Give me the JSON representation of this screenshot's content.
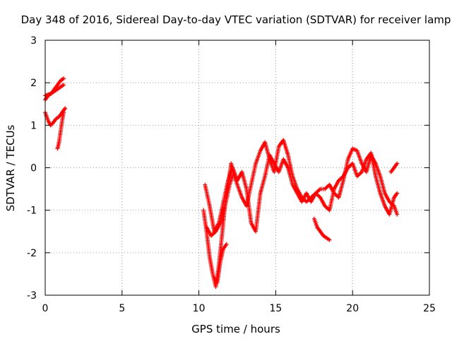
{
  "chart_data": {
    "type": "scatter",
    "title": "Day 348 of 2016, Sidereal Day-to-day VTEC variation (SDTVAR) for receiver lamp",
    "xlabel": "GPS time / hours",
    "ylabel": "SDTVAR / TECUs",
    "xlim": [
      0,
      25
    ],
    "ylim": [
      -3,
      3
    ],
    "xticks": [
      "0",
      "5",
      "10",
      "15",
      "20",
      "25"
    ],
    "yticks": [
      "3",
      "2",
      "1",
      "0",
      "-1",
      "-2",
      "-3"
    ],
    "grid": true,
    "legend": "none",
    "marker": "plus",
    "color": "#ff0000",
    "series": [
      {
        "x": [
          0.0,
          0.2,
          0.4,
          0.6,
          0.8,
          1.0,
          1.2
        ],
        "y": [
          1.6,
          1.7,
          1.75,
          1.85,
          1.95,
          2.05,
          2.1
        ]
      },
      {
        "x": [
          0.0,
          0.2,
          0.4,
          0.6,
          0.8,
          1.0,
          1.2
        ],
        "y": [
          1.7,
          1.72,
          1.75,
          1.8,
          1.85,
          1.9,
          1.95
        ]
      },
      {
        "x": [
          0.0,
          0.2,
          0.35,
          0.5,
          0.7,
          0.9,
          1.1,
          1.3
        ],
        "y": [
          1.3,
          1.1,
          1.0,
          1.05,
          1.15,
          1.2,
          1.3,
          1.4
        ]
      },
      {
        "x": [
          0.8,
          0.9,
          1.0,
          1.1,
          1.2
        ],
        "y": [
          0.45,
          0.6,
          0.85,
          1.1,
          1.3
        ]
      },
      {
        "x": [
          10.3,
          10.5,
          10.7,
          10.9,
          11.1,
          11.3,
          11.5,
          11.7,
          11.9,
          12.1,
          12.3,
          12.5,
          12.8,
          13.1,
          13.4,
          13.7,
          14.0,
          14.3,
          14.6,
          14.9,
          15.2,
          15.5,
          15.8,
          16.1,
          16.4,
          16.7,
          17.0,
          17.3,
          17.6,
          17.9,
          18.2,
          18.5,
          18.8,
          19.1,
          19.4,
          19.7,
          20.0,
          20.3,
          20.6,
          20.9,
          21.2,
          21.5,
          21.8,
          22.1,
          22.4,
          22.7,
          22.9
        ],
        "y": [
          -1.0,
          -1.5,
          -2.1,
          -2.5,
          -2.8,
          -2.3,
          -1.6,
          -0.9,
          -0.4,
          0.1,
          -0.2,
          -0.4,
          -0.7,
          -0.9,
          -0.4,
          0.1,
          0.4,
          0.6,
          0.2,
          -0.1,
          0.5,
          0.65,
          0.3,
          -0.2,
          -0.5,
          -0.7,
          -0.8,
          -0.7,
          -0.6,
          -0.5,
          -0.5,
          -0.4,
          -0.6,
          -0.7,
          -0.3,
          0.2,
          0.45,
          0.4,
          0.1,
          -0.1,
          0.3,
          0.1,
          -0.2,
          -0.6,
          -0.8,
          -0.9,
          -1.1
        ]
      },
      {
        "x": [
          10.4,
          10.7,
          11.0,
          11.3,
          11.6,
          11.9,
          12.2,
          12.5,
          12.8,
          13.1,
          13.4,
          13.7,
          14.0,
          14.3,
          14.6,
          14.9,
          15.2,
          15.5,
          15.8,
          16.1,
          16.4,
          16.7,
          17.0,
          17.3,
          17.6,
          17.9,
          18.2,
          18.5,
          18.8,
          19.1,
          19.4,
          19.7,
          20.0,
          20.3,
          20.6,
          20.9,
          21.2,
          21.5,
          21.8,
          22.1,
          22.4,
          22.7,
          22.9
        ],
        "y": [
          -0.4,
          -0.9,
          -1.5,
          -1.3,
          -0.8,
          -0.3,
          0.0,
          -0.3,
          -0.1,
          -0.5,
          -1.3,
          -1.5,
          -0.6,
          -0.2,
          0.3,
          0.1,
          -0.1,
          0.2,
          0.0,
          -0.4,
          -0.6,
          -0.8,
          -0.6,
          -0.8,
          -0.6,
          -0.7,
          -0.9,
          -1.0,
          -0.5,
          -0.3,
          -0.2,
          0.0,
          0.1,
          -0.2,
          -0.1,
          0.2,
          0.35,
          -0.2,
          -0.6,
          -0.9,
          -1.1,
          -0.7,
          -0.6
        ]
      },
      {
        "x": [
          10.5,
          10.8,
          11.1,
          11.4,
          11.7,
          12.0,
          12.2
        ],
        "y": [
          -1.4,
          -1.6,
          -1.5,
          -1.3,
          -0.9,
          -0.4,
          -0.2
        ]
      },
      {
        "x": [
          17.5,
          17.7,
          17.9,
          18.1,
          18.3,
          18.5
        ],
        "y": [
          -1.2,
          -1.4,
          -1.5,
          -1.6,
          -1.65,
          -1.7
        ]
      },
      {
        "x": [
          22.5,
          22.6,
          22.7,
          22.8,
          22.9
        ],
        "y": [
          -0.1,
          -0.05,
          0.0,
          0.05,
          0.1
        ]
      },
      {
        "x": [
          11.0,
          11.2,
          11.4,
          11.6,
          11.8
        ],
        "y": [
          -2.6,
          -2.7,
          -2.2,
          -1.9,
          -1.8
        ]
      }
    ]
  }
}
